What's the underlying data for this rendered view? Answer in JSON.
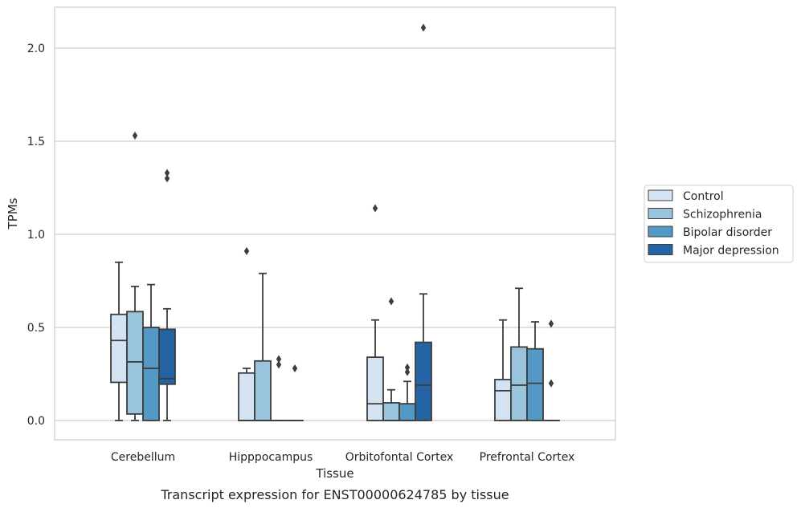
{
  "chart_data": {
    "type": "box",
    "caption": "Transcript expression for ENST00000624785 by tissue",
    "xlabel": "Tissue",
    "ylabel": "TPMs",
    "ylim": [
      -0.1,
      2.23
    ],
    "yticks": [
      0.0,
      0.5,
      1.0,
      1.5,
      2.0
    ],
    "ytick_labels": [
      "0.0",
      "0.5",
      "1.0",
      "1.5",
      "2.0"
    ],
    "grid": "horizontal",
    "legend_position": "right",
    "categories": [
      "Cerebellum",
      "Hipppocampus",
      "Orbitofontal Cortex",
      "Prefrontal Cortex"
    ],
    "series": [
      {
        "name": "Control",
        "color": "#d3e3f2",
        "boxes": [
          {
            "q1": 0.205,
            "median": 0.43,
            "q3": 0.57,
            "whislo": 0.0,
            "whishi": 0.85,
            "fliers": []
          },
          {
            "q1": 0.0,
            "median": 0.0,
            "q3": 0.255,
            "whislo": 0.0,
            "whishi": 0.28,
            "fliers": [
              0.91
            ]
          },
          {
            "q1": 0.0,
            "median": 0.09,
            "q3": 0.34,
            "whislo": 0.0,
            "whishi": 0.54,
            "fliers": [
              1.14
            ]
          },
          {
            "q1": 0.0,
            "median": 0.16,
            "q3": 0.22,
            "whislo": 0.0,
            "whishi": 0.54,
            "fliers": []
          }
        ]
      },
      {
        "name": "Schizophrenia",
        "color": "#9ac3dc",
        "boxes": [
          {
            "q1": 0.035,
            "median": 0.315,
            "q3": 0.585,
            "whislo": 0.0,
            "whishi": 0.72,
            "fliers": [
              1.53
            ]
          },
          {
            "q1": 0.0,
            "median": 0.0,
            "q3": 0.32,
            "whislo": 0.0,
            "whishi": 0.79,
            "fliers": []
          },
          {
            "q1": 0.0,
            "median": 0.0,
            "q3": 0.095,
            "whislo": 0.0,
            "whishi": 0.165,
            "fliers": [
              0.64
            ]
          },
          {
            "q1": 0.0,
            "median": 0.19,
            "q3": 0.395,
            "whislo": 0.0,
            "whishi": 0.71,
            "fliers": []
          }
        ]
      },
      {
        "name": "Bipolar disorder",
        "color": "#5498c6",
        "boxes": [
          {
            "q1": 0.0,
            "median": 0.28,
            "q3": 0.5,
            "whislo": 0.0,
            "whishi": 0.73,
            "fliers": []
          },
          {
            "q1": 0.0,
            "median": 0.0,
            "q3": 0.0,
            "whislo": 0.0,
            "whishi": 0.0,
            "fliers": [
              0.3,
              0.33
            ]
          },
          {
            "q1": 0.0,
            "median": 0.0,
            "q3": 0.09,
            "whislo": 0.0,
            "whishi": 0.21,
            "fliers": [
              0.26,
              0.285
            ]
          },
          {
            "q1": 0.0,
            "median": 0.2,
            "q3": 0.385,
            "whislo": 0.0,
            "whishi": 0.53,
            "fliers": []
          }
        ]
      },
      {
        "name": "Major depression",
        "color": "#2463a4",
        "boxes": [
          {
            "q1": 0.195,
            "median": 0.225,
            "q3": 0.49,
            "whislo": 0.0,
            "whishi": 0.6,
            "fliers": [
              1.3,
              1.33
            ]
          },
          {
            "q1": 0.0,
            "median": 0.0,
            "q3": 0.0,
            "whislo": 0.0,
            "whishi": 0.0,
            "fliers": [
              0.28
            ]
          },
          {
            "q1": 0.0,
            "median": 0.19,
            "q3": 0.42,
            "whislo": 0.0,
            "whishi": 0.68,
            "fliers": [
              2.11
            ]
          },
          {
            "q1": 0.0,
            "median": 0.0,
            "q3": 0.0,
            "whislo": 0.0,
            "whishi": 0.0,
            "fliers": [
              0.2,
              0.52
            ]
          }
        ]
      }
    ]
  }
}
